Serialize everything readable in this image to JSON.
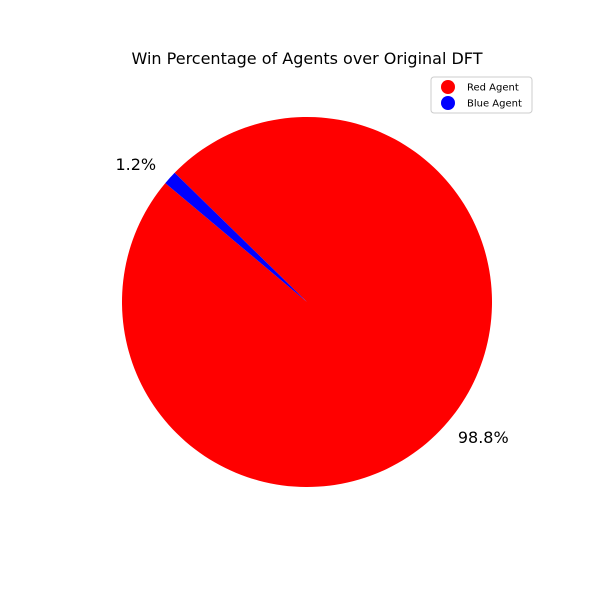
{
  "chart_data": {
    "type": "pie",
    "title": "Win Percentage of Agents over Original DFT",
    "slices": [
      {
        "label": "Red Agent",
        "value": 98.8,
        "pct_label": "98.8%",
        "color": "#ff0000"
      },
      {
        "label": "Blue Agent",
        "value": 1.2,
        "pct_label": "1.2%",
        "color": "#0000ff"
      }
    ],
    "start_angle_deg": 140,
    "legend": {
      "placement": "upper-right",
      "items": [
        "Red Agent",
        "Blue Agent"
      ]
    }
  }
}
